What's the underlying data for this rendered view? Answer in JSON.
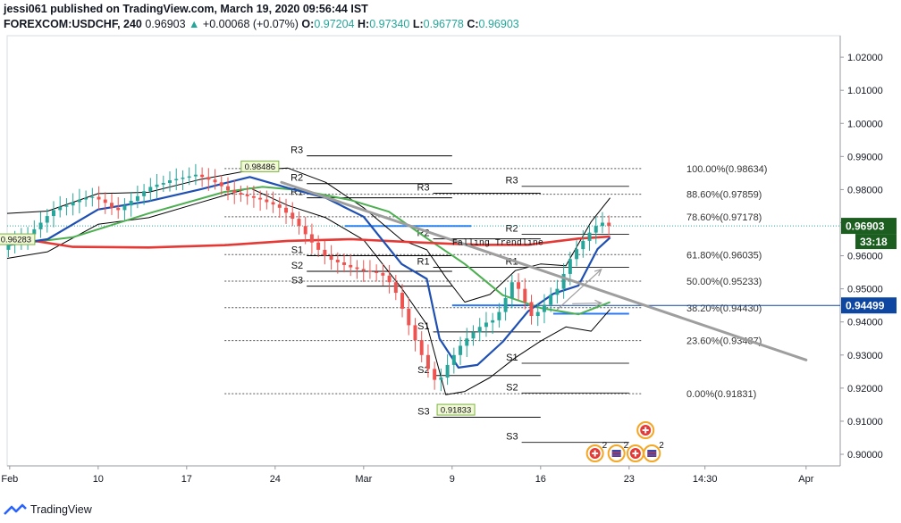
{
  "header": {
    "publisher": "jessi061 published on TradingView.com, March 19, 2020 09:56:44 IST",
    "symbol": "FOREXCOM:USDCHF, 240",
    "last": "0.96903",
    "change_arrow": "▲",
    "change": "+0.00068 (+0.07%)",
    "o_label": "O:",
    "o_value": "0.97204",
    "h_label": "H:",
    "h_value": "0.97340",
    "l_label": "L:",
    "l_value": "0.96778",
    "c_label": "C:",
    "c_value": "0.96903"
  },
  "footer": {
    "brand": "TradingView"
  },
  "colors": {
    "up": "#26a69a",
    "down": "#ef5350",
    "ma_red": "#e53935",
    "ma_green": "#4caf50",
    "ma_blue": "#1e4fb3",
    "band": "#000000",
    "trend": "#9e9e9e",
    "level_blue": "#2979ff",
    "price_tag": "#1b5e20",
    "alt_tag": "#0d47a1"
  },
  "chart_data": {
    "type": "candlestick",
    "symbol": "FOREXCOM:USDCHF",
    "timeframe": "240",
    "ylim": [
      0.8965,
      1.0265
    ],
    "y_ticks": [
      1.02,
      1.01,
      1.0,
      0.99,
      0.98,
      0.97,
      0.96,
      0.95,
      0.94,
      0.93,
      0.92,
      0.91,
      0.9
    ],
    "y_tick_labels": [
      "1.02000",
      "1.01000",
      "1.00000",
      "0.99000",
      "0.98000",
      "0.97000",
      "0.96000",
      "0.95000",
      "0.94000",
      "0.93000",
      "0.92000",
      "0.91000",
      "0.90000"
    ],
    "x_ticks": [
      {
        "label": "Feb",
        "day": 3
      },
      {
        "label": "10",
        "day": 10
      },
      {
        "label": "17",
        "day": 17
      },
      {
        "label": "24",
        "day": 24
      },
      {
        "label": "Mar",
        "day": 31
      },
      {
        "label": "9",
        "day": 38
      },
      {
        "label": "16",
        "day": 45
      },
      {
        "label": "23",
        "day": 52
      },
      {
        "label": "14:30",
        "day": 58
      },
      {
        "label": "Apr",
        "day": 66
      }
    ],
    "xlim": [
      2.8,
      68.7
    ],
    "price_tags": [
      {
        "value": 0.96903,
        "label": "0.96903",
        "kind": "last"
      },
      {
        "value": 0.94499,
        "label": "0.94499",
        "kind": "level"
      }
    ],
    "countdown": "33:18",
    "markers": [
      {
        "label": "0.98486",
        "day": 22.8,
        "price": 0.98486
      },
      {
        "label": "0.91833",
        "day": 38.3,
        "price": 0.91833
      },
      {
        "label": "0.96283",
        "day": 3.5,
        "price": 0.96283
      }
    ],
    "fibonacci": {
      "x_start_day": 20.0,
      "x_end_day": 53.0,
      "levels": [
        {
          "ratio_label": "100.00%(0.98634)",
          "price": 0.98634
        },
        {
          "ratio_label": "88.60%(0.97859)",
          "price": 0.97859
        },
        {
          "ratio_label": "78.60%(0.97178)",
          "price": 0.97178
        },
        {
          "ratio_label": "61.80%(0.96035)",
          "price": 0.96035
        },
        {
          "ratio_label": "50.00%(0.95233)",
          "price": 0.95233
        },
        {
          "ratio_label": "38.20%(0.94430)",
          "price": 0.9443
        },
        {
          "ratio_label": "23.60%(0.93437)",
          "price": 0.93437
        },
        {
          "ratio_label": "0.00%(0.91831)",
          "price": 0.91831
        }
      ]
    },
    "pivot_sets": [
      {
        "x0": 26.5,
        "x1": 38.0,
        "levels": [
          {
            "label": "R3",
            "price": 0.9902
          },
          {
            "label": "R2",
            "price": 0.9818
          },
          {
            "label": "R1",
            "price": 0.9775
          },
          {
            "label": "S1",
            "price": 0.96
          },
          {
            "label": "S2",
            "price": 0.9553
          },
          {
            "label": "S3",
            "price": 0.9508
          }
        ]
      },
      {
        "x0": 36.5,
        "x1": 45.0,
        "levels": [
          {
            "label": "R3",
            "price": 0.9789
          },
          {
            "label": "R2",
            "price": 0.9651
          },
          {
            "label": "R1",
            "price": 0.9565
          },
          {
            "label": "S1",
            "price": 0.937
          },
          {
            "label": "S2",
            "price": 0.9238
          },
          {
            "label": "S3",
            "price": 0.9112
          }
        ]
      },
      {
        "x0": 43.5,
        "x1": 52.0,
        "levels": [
          {
            "label": "R3",
            "price": 0.981
          },
          {
            "label": "R2",
            "price": 0.9665
          },
          {
            "label": "R1",
            "price": 0.9565
          },
          {
            "label": "S1",
            "price": 0.9275
          },
          {
            "label": "S2",
            "price": 0.9185
          },
          {
            "label": "S3",
            "price": 0.9036
          }
        ]
      }
    ],
    "horizontal_levels": [
      {
        "price": 0.969,
        "x0": 29.5,
        "x1": 39.5
      },
      {
        "price": 0.945,
        "x0": 38.0,
        "x1": 44.0
      },
      {
        "price": 0.9425,
        "x0": 46.0,
        "x1": 52.0
      }
    ],
    "trendline": {
      "label": "Falling Trendline",
      "label_day": 38.0,
      "label_price": 0.9633,
      "p0": [
        24.5,
        0.9822
      ],
      "p1": [
        66.0,
        0.9285
      ]
    },
    "projection_arrow": {
      "from": [
        46.3,
        0.9437
      ],
      "to": [
        49.8,
        0.9559
      ]
    },
    "projection_arrow2": {
      "from": [
        47.5,
        0.9455
      ],
      "to": [
        49.8,
        0.9457
      ]
    },
    "closes": [
      0.9633,
      0.9648,
      0.9652,
      0.9665,
      0.968,
      0.97,
      0.972,
      0.9738,
      0.9748,
      0.9752,
      0.9762,
      0.977,
      0.9775,
      0.9778,
      0.977,
      0.976,
      0.9745,
      0.9738,
      0.9752,
      0.9766,
      0.978,
      0.9795,
      0.9808,
      0.9815,
      0.982,
      0.9828,
      0.9832,
      0.9836,
      0.984,
      0.9845,
      0.9838,
      0.983,
      0.9822,
      0.981,
      0.9798,
      0.979,
      0.9785,
      0.978,
      0.9775,
      0.977,
      0.9762,
      0.9755,
      0.9745,
      0.973,
      0.9712,
      0.969,
      0.9665,
      0.964,
      0.9618,
      0.96,
      0.9588,
      0.958,
      0.9572,
      0.9565,
      0.956,
      0.9555,
      0.9552,
      0.9548,
      0.954,
      0.952,
      0.9488,
      0.944,
      0.939,
      0.9345,
      0.93,
      0.9258,
      0.9225,
      0.9232,
      0.927,
      0.93,
      0.9328,
      0.935,
      0.9368,
      0.9385,
      0.9398,
      0.9405,
      0.943,
      0.9472,
      0.952,
      0.95,
      0.946,
      0.9418,
      0.943,
      0.9452,
      0.9482,
      0.95,
      0.9545,
      0.959,
      0.962,
      0.9645,
      0.967,
      0.969,
      0.97,
      0.969
    ],
    "ma_red": [
      [
        2.8,
        0.9658
      ],
      [
        8,
        0.9627
      ],
      [
        14,
        0.9625
      ],
      [
        20,
        0.9632
      ],
      [
        25,
        0.9645
      ],
      [
        30,
        0.965
      ],
      [
        35,
        0.9641
      ],
      [
        40,
        0.9633
      ],
      [
        44,
        0.9633
      ],
      [
        48,
        0.9652
      ],
      [
        50.5,
        0.9658
      ]
    ],
    "ma_green": [
      [
        2.8,
        0.9632
      ],
      [
        8,
        0.9656
      ],
      [
        14,
        0.9728
      ],
      [
        20,
        0.9793
      ],
      [
        23,
        0.9808
      ],
      [
        26,
        0.9798
      ],
      [
        30,
        0.9768
      ],
      [
        33,
        0.9733
      ],
      [
        36,
        0.9653
      ],
      [
        39,
        0.9575
      ],
      [
        42,
        0.9481
      ],
      [
        45,
        0.9442
      ],
      [
        48,
        0.9423
      ],
      [
        50.5,
        0.946
      ]
    ],
    "ma_blue": [
      [
        2.8,
        0.9632
      ],
      [
        6,
        0.965
      ],
      [
        10,
        0.974
      ],
      [
        14,
        0.9765
      ],
      [
        18,
        0.98
      ],
      [
        22,
        0.9838
      ],
      [
        25,
        0.9805
      ],
      [
        28,
        0.9775
      ],
      [
        31,
        0.9718
      ],
      [
        34,
        0.9575
      ],
      [
        36,
        0.953
      ],
      [
        37,
        0.935
      ],
      [
        38.5,
        0.9262
      ],
      [
        40,
        0.927
      ],
      [
        42,
        0.934
      ],
      [
        44,
        0.9432
      ],
      [
        46,
        0.9485
      ],
      [
        48,
        0.951
      ],
      [
        49.5,
        0.962
      ],
      [
        50.5,
        0.9655
      ]
    ],
    "band_upper": [
      [
        2.8,
        0.9728
      ],
      [
        6,
        0.9735
      ],
      [
        10,
        0.9788
      ],
      [
        14,
        0.9792
      ],
      [
        18,
        0.983
      ],
      [
        22,
        0.9858
      ],
      [
        25,
        0.9865
      ],
      [
        28,
        0.9822
      ],
      [
        31,
        0.9745
      ],
      [
        34,
        0.9648
      ],
      [
        36,
        0.9618
      ],
      [
        37.5,
        0.9535
      ],
      [
        39,
        0.946
      ],
      [
        41,
        0.9483
      ],
      [
        43,
        0.9555
      ],
      [
        45,
        0.9575
      ],
      [
        47,
        0.957
      ],
      [
        49,
        0.9703
      ],
      [
        50.5,
        0.9775
      ]
    ],
    "band_lower": [
      [
        2.8,
        0.9592
      ],
      [
        6,
        0.9612
      ],
      [
        10,
        0.9695
      ],
      [
        14,
        0.9715
      ],
      [
        18,
        0.976
      ],
      [
        22,
        0.9805
      ],
      [
        25,
        0.9752
      ],
      [
        28,
        0.9715
      ],
      [
        31,
        0.9648
      ],
      [
        34,
        0.9502
      ],
      [
        36,
        0.9392
      ],
      [
        37.5,
        0.918
      ],
      [
        39,
        0.919
      ],
      [
        41,
        0.9232
      ],
      [
        43,
        0.9292
      ],
      [
        45,
        0.9342
      ],
      [
        47,
        0.9385
      ],
      [
        49,
        0.9372
      ],
      [
        50.5,
        0.9438
      ]
    ],
    "events": [
      {
        "day": 49.3,
        "type": "health",
        "count": "2"
      },
      {
        "day": 51.0,
        "type": "flag",
        "count": "2"
      },
      {
        "day": 52.5,
        "type": "health",
        "count": ""
      },
      {
        "day": 53.3,
        "type": "health",
        "count": ""
      },
      {
        "day": 53.8,
        "type": "flag",
        "count": "2"
      }
    ]
  }
}
